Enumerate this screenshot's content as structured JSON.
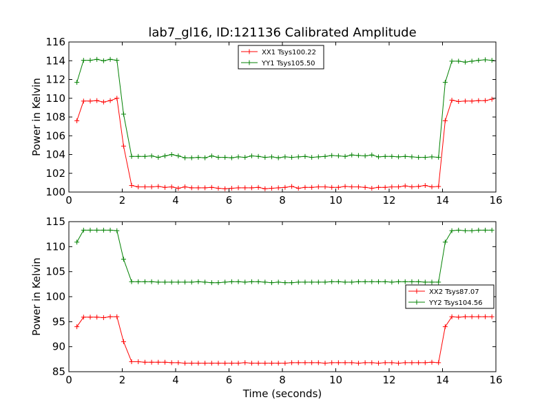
{
  "figure": {
    "title": "lab7_gl16, ID:121136 Calibrated Amplitude"
  },
  "chart_data": [
    {
      "type": "line",
      "title": "lab7_gl16, ID:121136 Calibrated Amplitude",
      "xlabel": "",
      "ylabel": "Power in Kelvin",
      "xlim": [
        0,
        16
      ],
      "ylim": [
        100,
        116
      ],
      "xticks": [
        "0",
        "2",
        "4",
        "6",
        "8",
        "10",
        "12",
        "14",
        "16"
      ],
      "yticks": [
        "100",
        "102",
        "104",
        "106",
        "108",
        "110",
        "112",
        "114",
        "116"
      ],
      "grid": false,
      "legend_position": "top-center",
      "x": [
        0.3,
        0.55,
        0.8,
        1.05,
        1.3,
        1.55,
        1.8,
        2.05,
        2.35,
        2.6,
        2.85,
        3.1,
        3.35,
        3.6,
        3.85,
        4.1,
        4.35,
        4.6,
        4.85,
        5.1,
        5.35,
        5.6,
        5.85,
        6.1,
        6.35,
        6.6,
        6.85,
        7.1,
        7.35,
        7.6,
        7.85,
        8.1,
        8.35,
        8.6,
        8.85,
        9.1,
        9.35,
        9.6,
        9.85,
        10.1,
        10.35,
        10.6,
        10.85,
        11.1,
        11.35,
        11.6,
        11.85,
        12.1,
        12.35,
        12.6,
        12.85,
        13.1,
        13.35,
        13.6,
        13.85,
        14.1,
        14.35,
        14.6,
        14.85,
        15.1,
        15.35,
        15.6,
        15.85
      ],
      "series": [
        {
          "name": "XX1 Tsys100.22",
          "color": "#ff0000",
          "values": [
            107.6,
            109.7,
            109.7,
            109.75,
            109.6,
            109.75,
            110.0,
            104.9,
            100.7,
            100.55,
            100.55,
            100.55,
            100.6,
            100.5,
            100.55,
            100.4,
            100.55,
            100.45,
            100.45,
            100.45,
            100.5,
            100.4,
            100.35,
            100.4,
            100.45,
            100.45,
            100.45,
            100.5,
            100.35,
            100.4,
            100.45,
            100.5,
            100.6,
            100.4,
            100.5,
            100.5,
            100.55,
            100.55,
            100.5,
            100.5,
            100.6,
            100.55,
            100.55,
            100.5,
            100.4,
            100.5,
            100.5,
            100.55,
            100.55,
            100.65,
            100.55,
            100.6,
            100.7,
            100.55,
            100.6,
            107.6,
            109.8,
            109.65,
            109.7,
            109.7,
            109.75,
            109.75,
            109.9
          ]
        },
        {
          "name": "YY1 Tsys105.50",
          "color": "#008000",
          "values": [
            111.7,
            114.05,
            114.05,
            114.15,
            114.0,
            114.15,
            114.05,
            108.3,
            103.8,
            103.8,
            103.8,
            103.85,
            103.7,
            103.85,
            104.0,
            103.85,
            103.65,
            103.65,
            103.7,
            103.65,
            103.85,
            103.7,
            103.7,
            103.65,
            103.75,
            103.7,
            103.85,
            103.8,
            103.7,
            103.75,
            103.65,
            103.75,
            103.7,
            103.75,
            103.8,
            103.7,
            103.75,
            103.8,
            103.9,
            103.85,
            103.8,
            103.95,
            103.9,
            103.85,
            103.95,
            103.75,
            103.8,
            103.8,
            103.75,
            103.8,
            103.75,
            103.7,
            103.7,
            103.75,
            103.7,
            111.7,
            113.95,
            113.95,
            113.85,
            113.95,
            114.05,
            114.1,
            114.05
          ]
        }
      ]
    },
    {
      "type": "line",
      "title": "",
      "xlabel": "Time (seconds)",
      "ylabel": "Power in Kelvin",
      "xlim": [
        0,
        16
      ],
      "ylim": [
        85,
        115
      ],
      "xticks": [
        "0",
        "2",
        "4",
        "6",
        "8",
        "10",
        "12",
        "14",
        "16"
      ],
      "yticks": [
        "85",
        "90",
        "95",
        "100",
        "105",
        "110",
        "115"
      ],
      "grid": false,
      "legend_position": "center-right",
      "x": [
        0.3,
        0.55,
        0.8,
        1.05,
        1.3,
        1.55,
        1.8,
        2.05,
        2.35,
        2.6,
        2.85,
        3.1,
        3.35,
        3.6,
        3.85,
        4.1,
        4.35,
        4.6,
        4.85,
        5.1,
        5.35,
        5.6,
        5.85,
        6.1,
        6.35,
        6.6,
        6.85,
        7.1,
        7.35,
        7.6,
        7.85,
        8.1,
        8.35,
        8.6,
        8.85,
        9.1,
        9.35,
        9.6,
        9.85,
        10.1,
        10.35,
        10.6,
        10.85,
        11.1,
        11.35,
        11.6,
        11.85,
        12.1,
        12.35,
        12.6,
        12.85,
        13.1,
        13.35,
        13.6,
        13.85,
        14.1,
        14.35,
        14.6,
        14.85,
        15.1,
        15.35,
        15.6,
        15.85
      ],
      "series": [
        {
          "name": "XX2 Tsys87.07",
          "color": "#ff0000",
          "values": [
            94.0,
            95.9,
            95.9,
            95.9,
            95.8,
            96.0,
            96.0,
            91.0,
            87.0,
            87.0,
            86.9,
            86.9,
            86.9,
            86.9,
            86.8,
            86.8,
            86.7,
            86.7,
            86.7,
            86.7,
            86.7,
            86.7,
            86.7,
            86.7,
            86.7,
            86.8,
            86.7,
            86.7,
            86.7,
            86.7,
            86.7,
            86.7,
            86.8,
            86.8,
            86.8,
            86.8,
            86.8,
            86.7,
            86.8,
            86.8,
            86.8,
            86.8,
            86.7,
            86.8,
            86.8,
            86.7,
            86.8,
            86.8,
            86.7,
            86.8,
            86.8,
            86.8,
            86.8,
            86.9,
            86.8,
            94.0,
            96.0,
            95.9,
            96.0,
            96.0,
            96.0,
            96.0,
            96.0
          ]
        },
        {
          "name": "YY2 Tsys104.56",
          "color": "#008000",
          "values": [
            110.9,
            113.3,
            113.3,
            113.3,
            113.3,
            113.3,
            113.2,
            107.5,
            103.0,
            103.0,
            103.0,
            103.0,
            102.9,
            102.9,
            102.9,
            102.9,
            102.9,
            102.9,
            103.0,
            102.9,
            102.8,
            102.8,
            102.9,
            103.0,
            103.0,
            102.9,
            103.0,
            103.0,
            102.9,
            102.8,
            102.9,
            102.8,
            102.8,
            102.9,
            102.9,
            102.9,
            102.9,
            102.9,
            103.0,
            103.0,
            102.9,
            102.9,
            103.0,
            103.0,
            103.0,
            103.0,
            103.0,
            102.9,
            103.0,
            103.0,
            103.0,
            103.0,
            102.9,
            102.9,
            102.9,
            110.9,
            113.2,
            113.3,
            113.2,
            113.2,
            113.3,
            113.3,
            113.3
          ]
        }
      ]
    }
  ]
}
